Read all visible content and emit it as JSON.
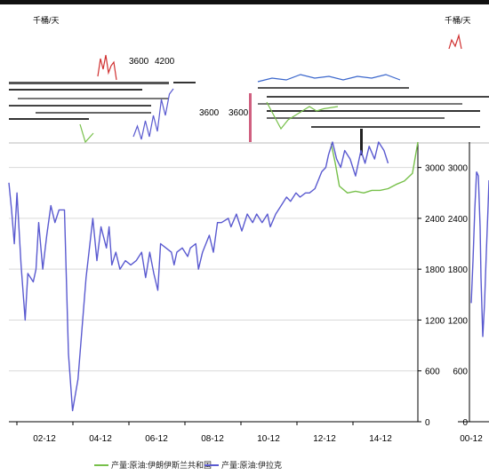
{
  "chart_data": {
    "type": "line",
    "unit_label": "千桶/天",
    "title": "",
    "xlabel": "",
    "ylabel": "",
    "x_ticks": [
      "02-12",
      "04-12",
      "06-12",
      "08-12",
      "10-12",
      "12-12",
      "14-12"
    ],
    "inset_x_ticks": [
      "00-12"
    ],
    "y_ticks": [
      0,
      600,
      1200,
      1800,
      2400,
      3000
    ],
    "ylim": [
      0,
      3300
    ],
    "overlay_labels": [
      "3600",
      "4200",
      "3600",
      "3600"
    ],
    "grid": "horizontal",
    "legend_position": "bottom",
    "series": [
      {
        "name": "产量:原油:伊朗伊斯兰共和国",
        "color": "#77c04a",
        "points": [
          [
            2012.8,
            3280
          ],
          [
            2012.95,
            3050
          ],
          [
            2013.1,
            2780
          ],
          [
            2013.4,
            2700
          ],
          [
            2013.7,
            2720
          ],
          [
            2014.0,
            2700
          ],
          [
            2014.3,
            2730
          ],
          [
            2014.6,
            2730
          ],
          [
            2014.9,
            2750
          ],
          [
            2015.2,
            2800
          ],
          [
            2015.5,
            2840
          ],
          [
            2015.8,
            2930
          ],
          [
            2016.0,
            3300
          ]
        ]
      },
      {
        "name": "产量:原油:伊拉克",
        "color": "#5a5ad0",
        "points": [
          [
            2000.9,
            2820
          ],
          [
            2001.0,
            2500
          ],
          [
            2001.1,
            2100
          ],
          [
            2001.2,
            2700
          ],
          [
            2001.35,
            1850
          ],
          [
            2001.5,
            1200
          ],
          [
            2001.6,
            1750
          ],
          [
            2001.8,
            1650
          ],
          [
            2001.9,
            1800
          ],
          [
            2002.0,
            2350
          ],
          [
            2002.15,
            1800
          ],
          [
            2002.3,
            2200
          ],
          [
            2002.45,
            2550
          ],
          [
            2002.6,
            2350
          ],
          [
            2002.75,
            2500
          ],
          [
            2002.95,
            2500
          ],
          [
            2003.1,
            800
          ],
          [
            2003.25,
            130
          ],
          [
            2003.45,
            500
          ],
          [
            2003.75,
            1700
          ],
          [
            2004.0,
            2400
          ],
          [
            2004.15,
            1900
          ],
          [
            2004.3,
            2300
          ],
          [
            2004.5,
            2050
          ],
          [
            2004.6,
            2300
          ],
          [
            2004.7,
            1850
          ],
          [
            2004.85,
            2000
          ],
          [
            2005.0,
            1800
          ],
          [
            2005.2,
            1900
          ],
          [
            2005.4,
            1850
          ],
          [
            2005.6,
            1900
          ],
          [
            2005.8,
            2000
          ],
          [
            2005.95,
            1700
          ],
          [
            2006.1,
            2000
          ],
          [
            2006.25,
            1750
          ],
          [
            2006.4,
            1550
          ],
          [
            2006.5,
            2100
          ],
          [
            2006.7,
            2050
          ],
          [
            2006.9,
            2000
          ],
          [
            2007.0,
            1850
          ],
          [
            2007.1,
            2000
          ],
          [
            2007.3,
            2050
          ],
          [
            2007.5,
            1950
          ],
          [
            2007.6,
            2050
          ],
          [
            2007.8,
            2100
          ],
          [
            2007.9,
            1800
          ],
          [
            2008.05,
            2000
          ],
          [
            2008.3,
            2200
          ],
          [
            2008.45,
            2000
          ],
          [
            2008.6,
            2350
          ],
          [
            2008.75,
            2350
          ],
          [
            2009.0,
            2400
          ],
          [
            2009.1,
            2300
          ],
          [
            2009.3,
            2450
          ],
          [
            2009.5,
            2250
          ],
          [
            2009.7,
            2450
          ],
          [
            2009.9,
            2350
          ],
          [
            2010.05,
            2450
          ],
          [
            2010.25,
            2350
          ],
          [
            2010.45,
            2450
          ],
          [
            2010.55,
            2300
          ],
          [
            2010.75,
            2450
          ],
          [
            2010.95,
            2550
          ],
          [
            2011.15,
            2650
          ],
          [
            2011.3,
            2600
          ],
          [
            2011.5,
            2700
          ],
          [
            2011.65,
            2650
          ],
          [
            2011.85,
            2700
          ],
          [
            2012.0,
            2700
          ],
          [
            2012.2,
            2750
          ],
          [
            2012.45,
            2950
          ],
          [
            2012.6,
            3000
          ],
          [
            2012.7,
            3150
          ],
          [
            2012.85,
            3300
          ],
          [
            2013.0,
            3100
          ],
          [
            2013.15,
            3000
          ],
          [
            2013.3,
            3200
          ],
          [
            2013.5,
            3100
          ],
          [
            2013.7,
            2900
          ],
          [
            2013.9,
            3200
          ],
          [
            2014.05,
            3050
          ],
          [
            2014.2,
            3250
          ],
          [
            2014.4,
            3100
          ],
          [
            2014.55,
            3300
          ],
          [
            2014.75,
            3200
          ],
          [
            2014.9,
            3050
          ]
        ]
      }
    ],
    "inset_series": {
      "color": "#5a5ad0",
      "points": [
        [
          0,
          1400
        ],
        [
          0.1,
          1900
        ],
        [
          0.2,
          2500
        ],
        [
          0.3,
          2950
        ],
        [
          0.4,
          2900
        ],
        [
          0.5,
          2300
        ],
        [
          0.55,
          1700
        ],
        [
          0.65,
          1000
        ],
        [
          0.75,
          1400
        ],
        [
          0.85,
          2000
        ],
        [
          0.95,
          2550
        ],
        [
          1.0,
          2850
        ]
      ]
    },
    "top_fragment_series": [
      {
        "color": "#3a66cc",
        "points": [
          [
            0,
            0.6
          ],
          [
            0.1,
            0.4
          ],
          [
            0.2,
            0.5
          ],
          [
            0.3,
            0.2
          ],
          [
            0.4,
            0.4
          ],
          [
            0.5,
            0.3
          ],
          [
            0.6,
            0.5
          ],
          [
            0.7,
            0.3
          ],
          [
            0.8,
            0.4
          ],
          [
            0.9,
            0.2
          ],
          [
            1.0,
            0.5
          ]
        ]
      },
      {
        "color": "#77c04a",
        "points": [
          [
            0,
            0.3
          ],
          [
            0.1,
            0.6
          ],
          [
            0.2,
            0.9
          ],
          [
            0.3,
            0.7
          ],
          [
            0.4,
            0.6
          ],
          [
            0.5,
            0.5
          ],
          [
            0.6,
            0.4
          ],
          [
            0.7,
            0.5
          ],
          [
            0.8,
            0.45
          ],
          [
            1.0,
            0.4
          ]
        ]
      },
      {
        "color": "#d03030",
        "points": [
          [
            0,
            0.7
          ],
          [
            0.1,
            0.2
          ],
          [
            0.2,
            0.5
          ],
          [
            0.3,
            0.1
          ],
          [
            0.4,
            0.6
          ],
          [
            0.5,
            0.4
          ],
          [
            0.6,
            0.3
          ],
          [
            0.7,
            0.8
          ]
        ]
      },
      {
        "color": "#5a5ad0",
        "points": [
          [
            0,
            0.9
          ],
          [
            0.1,
            0.7
          ],
          [
            0.2,
            0.95
          ],
          [
            0.3,
            0.6
          ],
          [
            0.4,
            0.9
          ],
          [
            0.5,
            0.5
          ],
          [
            0.6,
            0.8
          ],
          [
            0.7,
            0.2
          ],
          [
            0.8,
            0.5
          ],
          [
            0.9,
            0.1
          ],
          [
            1.0,
            0.0
          ]
        ]
      }
    ]
  }
}
